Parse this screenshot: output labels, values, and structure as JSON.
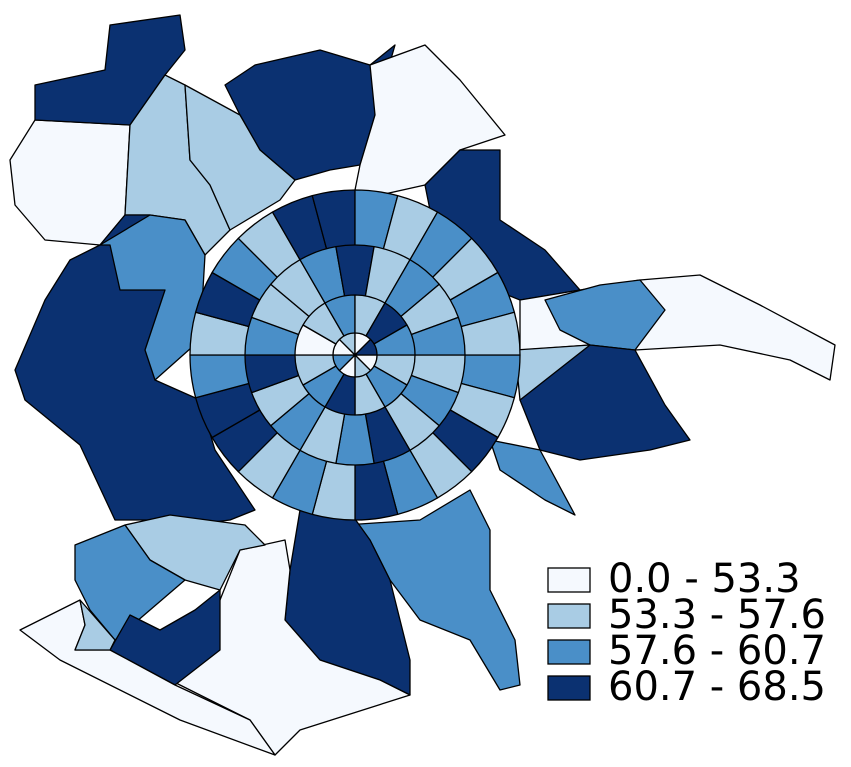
{
  "legend": [
    {
      "label": "0.0 - 53.3",
      "color": "#f5f9fe"
    },
    {
      "label": "53.3 - 57.6",
      "color": "#a9cce4"
    },
    {
      "label": "57.6 - 60.7",
      "color": "#4a8fc8"
    },
    {
      "label": "60.7 - 68.5",
      "color": "#0b3171"
    }
  ]
}
